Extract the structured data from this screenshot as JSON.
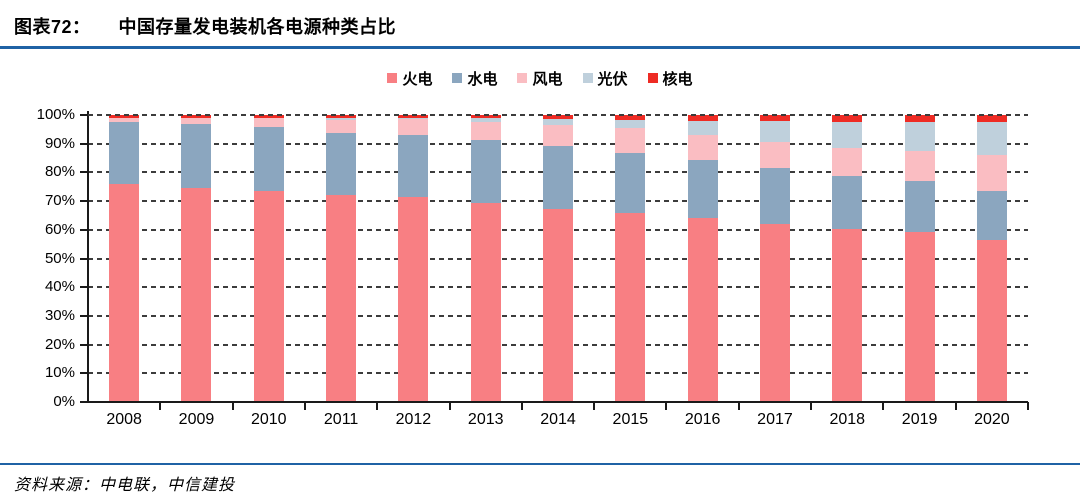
{
  "figure": {
    "label": "图表72：",
    "title": "中国存量发电装机各电源种类占比"
  },
  "source_note": "资料来源：中电联，中信建投",
  "colors": {
    "rule_blue": "#1F62A5",
    "axis": "#1a1a1a",
    "grid_dash": "#3c3c3c"
  },
  "chart_data": {
    "type": "bar",
    "stacked": true,
    "unit": "percent",
    "title": "中国存量发电装机各电源种类占比",
    "categories": [
      "2008",
      "2009",
      "2010",
      "2011",
      "2012",
      "2013",
      "2014",
      "2015",
      "2016",
      "2017",
      "2018",
      "2019",
      "2020"
    ],
    "series": [
      {
        "name": "火电",
        "color": "#F87F83",
        "values": [
          76.0,
          74.6,
          73.4,
          72.0,
          71.5,
          69.2,
          67.2,
          65.9,
          64.2,
          62.2,
          60.2,
          59.2,
          56.6
        ]
      },
      {
        "name": "水电",
        "color": "#8BA6BF",
        "values": [
          21.7,
          22.4,
          22.4,
          21.9,
          21.7,
          22.2,
          22.0,
          21.0,
          20.1,
          19.2,
          18.5,
          17.7,
          16.8
        ]
      },
      {
        "name": "风电",
        "color": "#FABDC2",
        "values": [
          1.1,
          2.0,
          3.1,
          4.4,
          5.3,
          6.0,
          7.3,
          8.6,
          8.9,
          9.2,
          9.7,
          10.4,
          12.8
        ]
      },
      {
        "name": "光伏",
        "color": "#BFD0DC",
        "values": [
          0.1,
          0.0,
          0.0,
          0.5,
          0.4,
          1.4,
          2.0,
          2.7,
          4.7,
          7.4,
          9.2,
          10.3,
          11.5
        ]
      },
      {
        "name": "核电",
        "color": "#EE2B24",
        "values": [
          1.1,
          1.0,
          1.1,
          1.2,
          1.1,
          1.2,
          1.5,
          1.8,
          2.1,
          2.0,
          2.4,
          2.4,
          2.3
        ]
      }
    ],
    "xlabel": "",
    "ylabel": "",
    "ylim": [
      0,
      100
    ],
    "ytick_step": 10,
    "ytick_suffix": "%",
    "grid": "dashed-horizontal",
    "legend_position": "top-center"
  }
}
